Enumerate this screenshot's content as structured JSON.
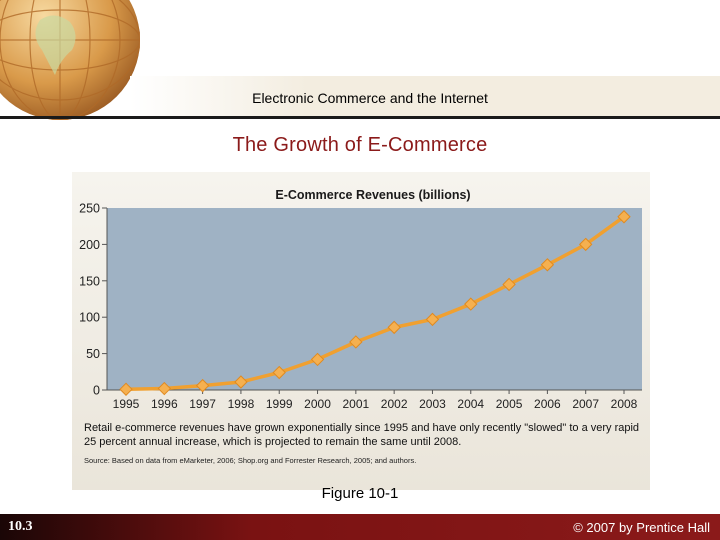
{
  "header": {
    "title": "Electronic Commerce and the Internet"
  },
  "slide": {
    "title": "The Growth of E-Commerce"
  },
  "chart_data": {
    "type": "line",
    "title": "E-Commerce Revenues (billions)",
    "xlabel": "",
    "ylabel": "",
    "x": [
      "1995",
      "1996",
      "1997",
      "1998",
      "1999",
      "2000",
      "2001",
      "2002",
      "2003",
      "2004",
      "2005",
      "2006",
      "2007",
      "2008"
    ],
    "series": [
      {
        "values": [
          1,
          2,
          6,
          11,
          24,
          42,
          66,
          86,
          97,
          118,
          145,
          172,
          200,
          238
        ]
      }
    ],
    "yticks": [
      "0",
      "50",
      "100",
      "150",
      "200",
      "250"
    ],
    "ylim": [
      0,
      250
    ],
    "grid": false,
    "line_color": "#f0a030",
    "marker_color": "#f5b050",
    "plot_bg": "#9fb2c4"
  },
  "caption": {
    "text": "Retail e-commerce revenues have grown exponentially since 1995 and have only recently \"slowed\" to a very rapid 25 percent annual increase, which is projected to remain the same until 2008.",
    "source": "Source: Based on data from eMarketer, 2006; Shop.org and Forrester Research, 2005; and authors."
  },
  "figure": {
    "label": "Figure 10-1"
  },
  "footer": {
    "section": "10.3",
    "copyright": "© 2007 by Prentice Hall"
  }
}
